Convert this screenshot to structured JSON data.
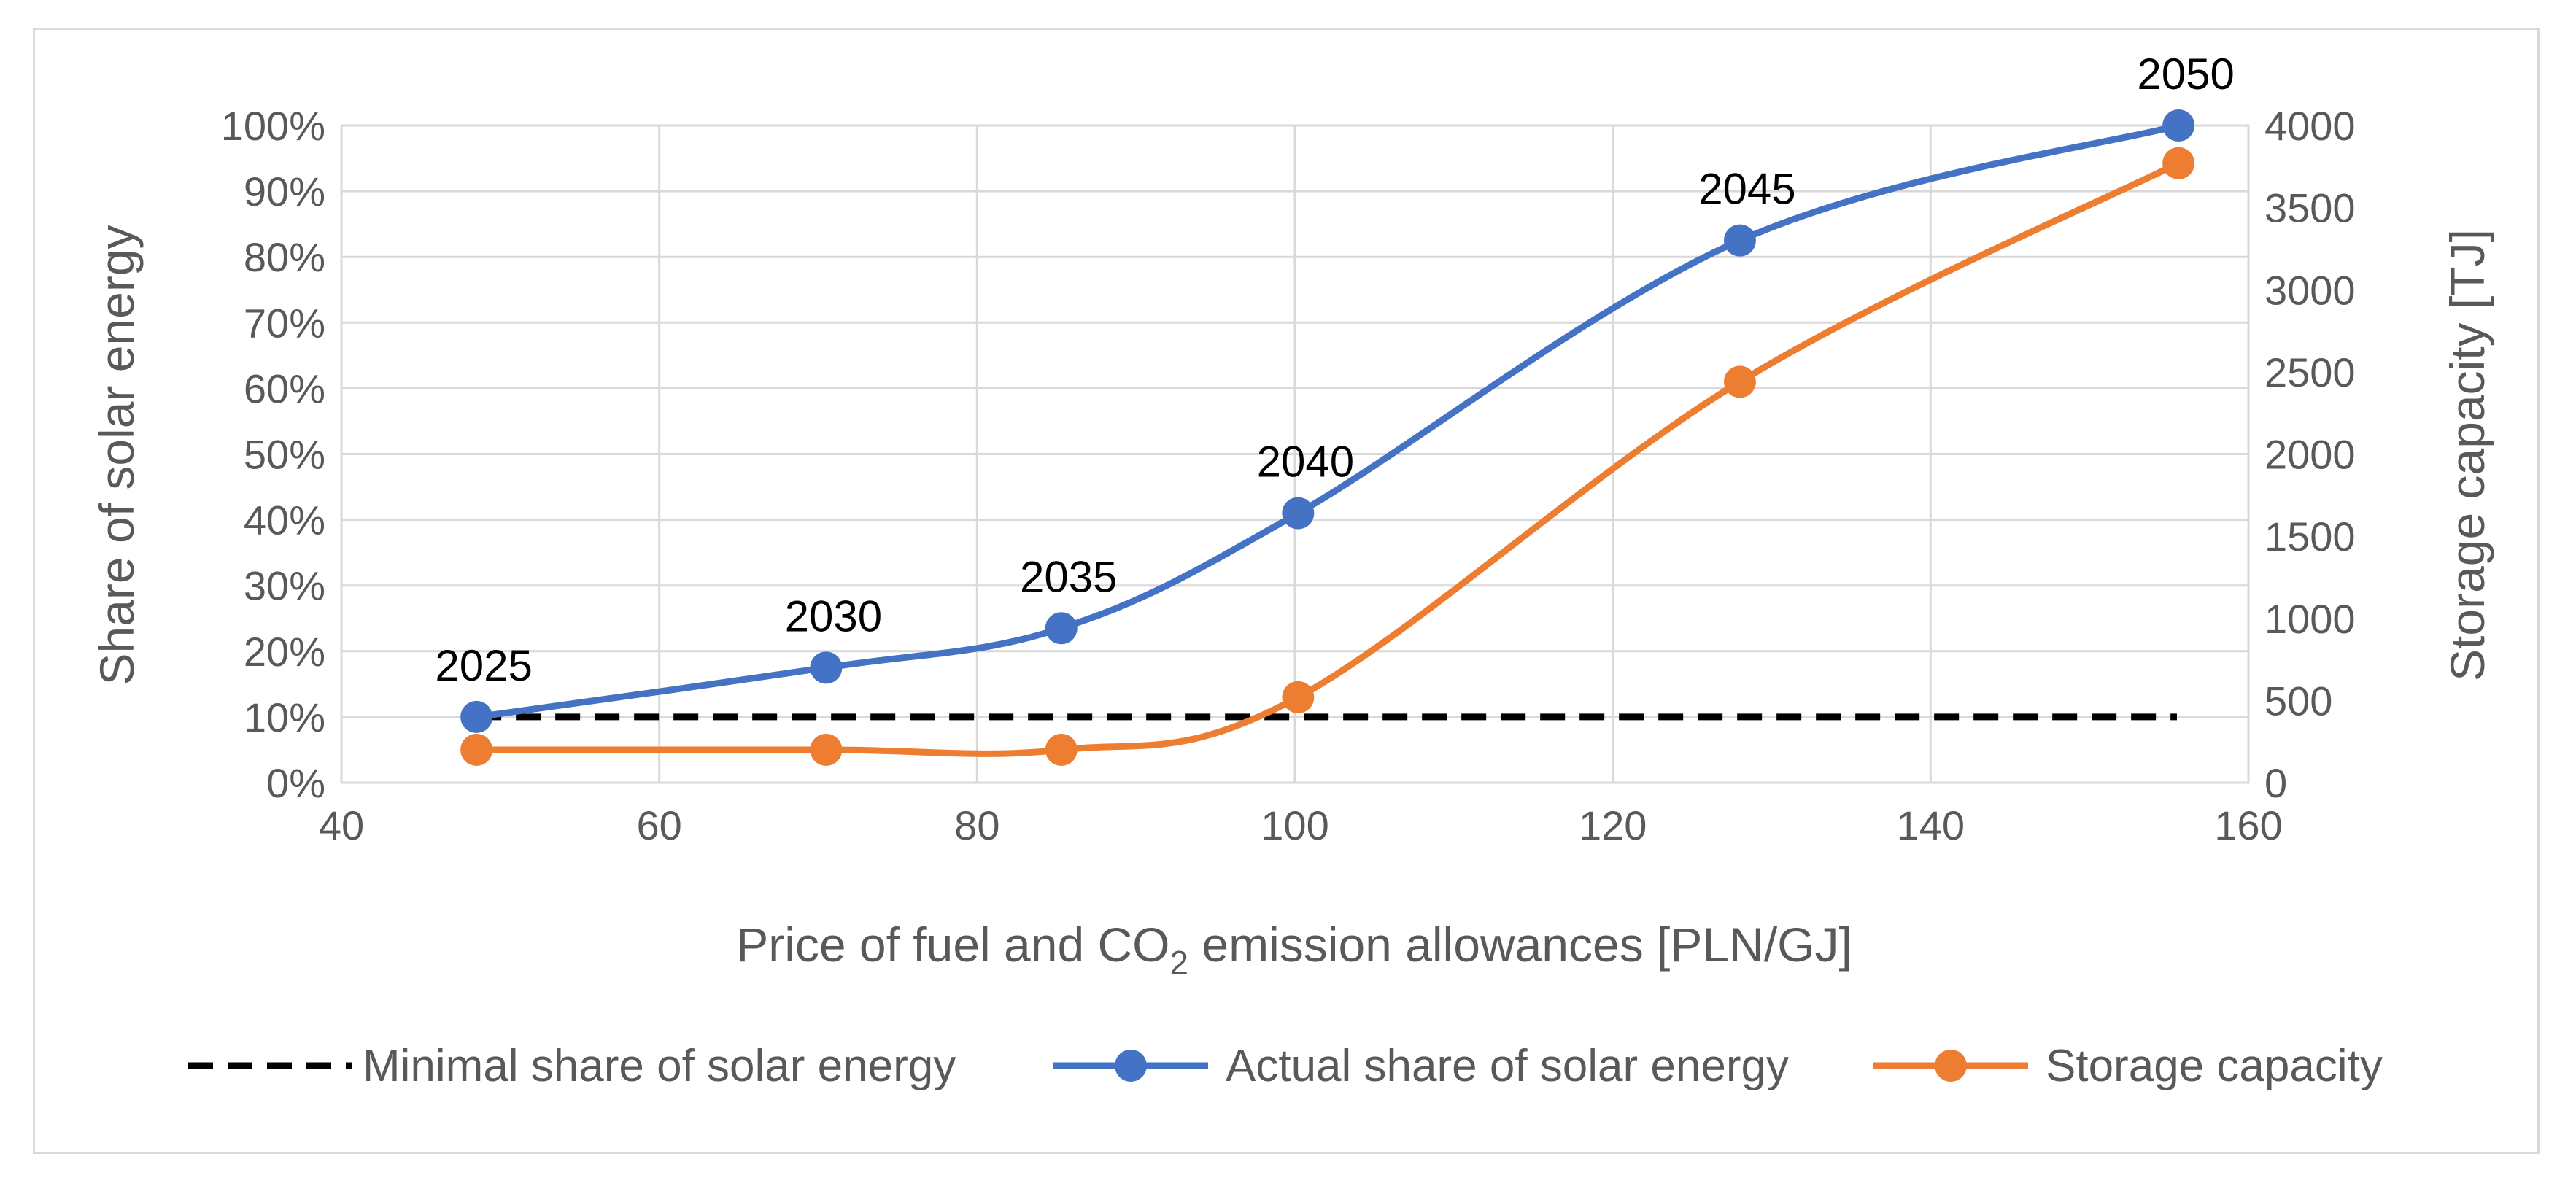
{
  "chart_data": {
    "type": "line",
    "title": "",
    "xlabel": {
      "prefix": "Price of fuel and CO",
      "subscript": "2",
      "suffix": " emission allowances [PLN/GJ]"
    },
    "ylabel_left": "Share of solar energy",
    "ylabel_right": "Storage capacity [TJ]",
    "xlim": [
      40,
      160
    ],
    "ylim_left": [
      0,
      100
    ],
    "ylim_right": [
      0,
      4000
    ],
    "x_ticks": [
      "40",
      "60",
      "80",
      "100",
      "120",
      "140",
      "160"
    ],
    "y_left_ticks": [
      "0%",
      "10%",
      "20%",
      "30%",
      "40%",
      "50%",
      "60%",
      "70%",
      "80%",
      "90%",
      "100%"
    ],
    "y_right_ticks": [
      "0",
      "500",
      "1000",
      "1500",
      "2000",
      "2500",
      "3000",
      "3500",
      "4000"
    ],
    "grid": true,
    "legend_position": "bottom",
    "series": [
      {
        "name": "Minimal share of solar energy",
        "axis": "left",
        "style": "dashed",
        "color": "#000000",
        "x": [
          48.5,
          155.5
        ],
        "values": [
          10,
          10
        ]
      },
      {
        "name": "Actual share of solar energy",
        "axis": "left",
        "style": "solid-markers",
        "color": "#4472C4",
        "x": [
          48.5,
          70.5,
          85.3,
          100.2,
          128.0,
          155.6
        ],
        "values": [
          10,
          17.5,
          23.5,
          41,
          82.5,
          100
        ],
        "point_labels": [
          "2025",
          "2030",
          "2035",
          "2040",
          "2045",
          "2050"
        ]
      },
      {
        "name": "Storage capacity",
        "axis": "right",
        "style": "solid-markers",
        "color": "#ED7D31",
        "x": [
          48.5,
          70.5,
          85.3,
          100.2,
          128.0,
          155.6
        ],
        "values": [
          200,
          200,
          200,
          520,
          2440,
          3770
        ]
      }
    ]
  }
}
